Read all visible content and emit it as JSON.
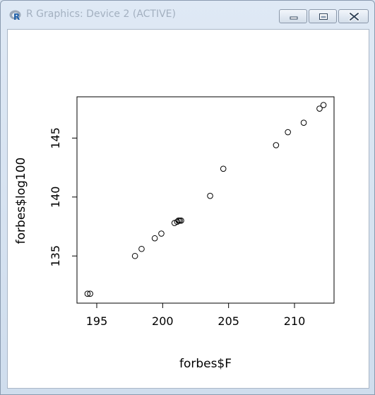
{
  "window": {
    "title": "R Graphics: Device 2 (ACTIVE)",
    "app_icon": "r-logo-icon",
    "controls": [
      "minimize-icon",
      "maximize-icon",
      "close-icon"
    ]
  },
  "chart_data": {
    "type": "scatter",
    "xlabel": "forbes$F",
    "ylabel": "forbes$log100",
    "xlim": [
      193.5,
      213.0
    ],
    "ylim": [
      131.0,
      148.5
    ],
    "x_ticks": [
      195,
      200,
      205,
      210
    ],
    "y_ticks": [
      135,
      140,
      145
    ],
    "grid": false,
    "reference_line": {
      "type": "abline",
      "intercept": 0,
      "slope": 1
    },
    "points": [
      {
        "x": 194.3,
        "y": 131.8
      },
      {
        "x": 194.5,
        "y": 131.8
      },
      {
        "x": 197.9,
        "y": 135.0
      },
      {
        "x": 198.4,
        "y": 135.6
      },
      {
        "x": 199.4,
        "y": 136.5
      },
      {
        "x": 199.9,
        "y": 136.9
      },
      {
        "x": 200.9,
        "y": 137.8
      },
      {
        "x": 201.1,
        "y": 137.9
      },
      {
        "x": 201.2,
        "y": 138.0
      },
      {
        "x": 201.3,
        "y": 138.0
      },
      {
        "x": 201.4,
        "y": 138.0
      },
      {
        "x": 203.6,
        "y": 140.1
      },
      {
        "x": 204.6,
        "y": 142.4
      },
      {
        "x": 208.6,
        "y": 144.4
      },
      {
        "x": 209.5,
        "y": 145.5
      },
      {
        "x": 210.7,
        "y": 146.3
      },
      {
        "x": 211.9,
        "y": 147.5
      },
      {
        "x": 212.2,
        "y": 147.8
      }
    ]
  }
}
